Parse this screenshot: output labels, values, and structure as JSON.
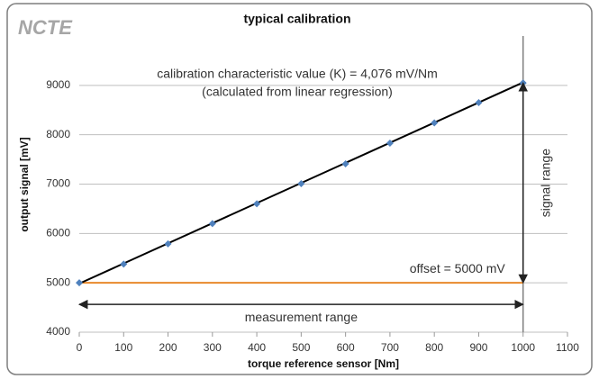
{
  "chart_data": {
    "type": "scatter",
    "logo": "NCTE",
    "title": "typical calibration",
    "xlabel": "torque reference sensor [Nm]",
    "ylabel": "output signal [mV]",
    "x": [
      0,
      100,
      200,
      300,
      400,
      500,
      600,
      700,
      800,
      900,
      1000
    ],
    "values": [
      5000,
      5380,
      5790,
      6200,
      6600,
      7010,
      7410,
      7830,
      8240,
      8650,
      9050
    ],
    "color": "#4f81bd",
    "fit_line": {
      "x": [
        0,
        1000
      ],
      "values": [
        4985,
        9060
      ],
      "color": "#000000"
    },
    "offset_line": {
      "label": "offset = 5000 mV",
      "x": [
        0,
        1000
      ],
      "values": [
        5000,
        5000
      ],
      "color": "#e8892b"
    },
    "annotations": [
      "calibration characteristic value (K) = 4,076 mV/Nm",
      "(calculated from linear regression)"
    ],
    "signal_range": {
      "label": "signal range",
      "x": 1000,
      "from": 5000,
      "to": 9050
    },
    "measurement_range": {
      "label": "measurement range",
      "from": 0,
      "to": 1000
    },
    "xlim": [
      0,
      1100
    ],
    "xticks": [
      0,
      100,
      200,
      300,
      400,
      500,
      600,
      700,
      800,
      900,
      1000,
      1100
    ],
    "ylim": [
      4000,
      10000
    ],
    "yticks": [
      4000,
      5000,
      6000,
      7000,
      8000,
      9000
    ],
    "grid": true
  }
}
